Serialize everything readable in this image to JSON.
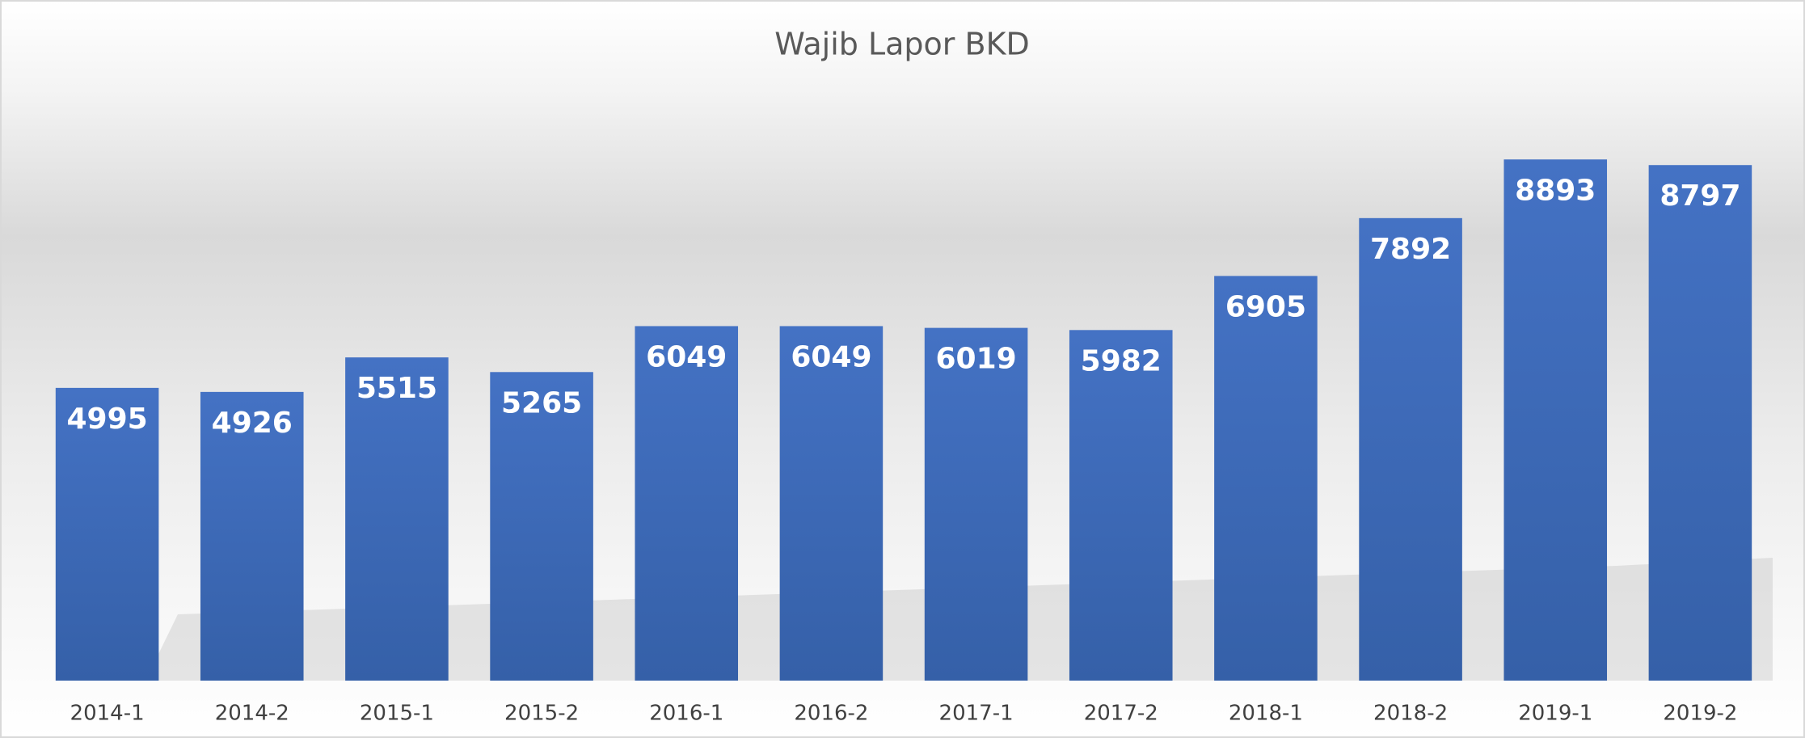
{
  "chart_data": {
    "type": "bar",
    "title": "Wajib Lapor BKD",
    "categories": [
      "2014-1",
      "2014-2",
      "2015-1",
      "2015-2",
      "2016-1",
      "2016-2",
      "2017-1",
      "2017-2",
      "2018-1",
      "2018-2",
      "2019-1",
      "2019-2"
    ],
    "values": [
      4995,
      4926,
      5515,
      5265,
      6049,
      6049,
      6019,
      5982,
      6905,
      7892,
      8893,
      8797
    ],
    "color": "#4472c4",
    "ylim": [
      0,
      10000
    ]
  }
}
